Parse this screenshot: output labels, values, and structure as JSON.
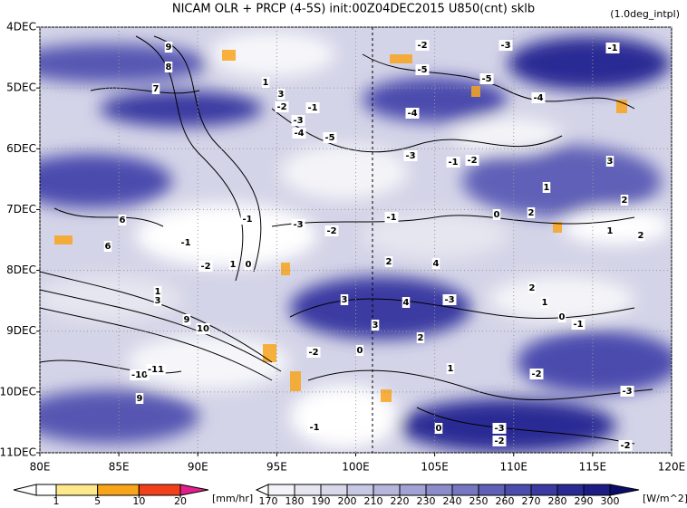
{
  "chart_data": {
    "type": "heatmap",
    "title": "NICAM  OLR + PRCP (4-5S) init:00Z04DEC2015 U850(cnt) sklb",
    "subtitle": "(1.0deg_intpl)",
    "xlim": [
      80,
      120
    ],
    "xticks": [
      {
        "value": 80,
        "label": "80E"
      },
      {
        "value": 85,
        "label": "85E"
      },
      {
        "value": 90,
        "label": "90E"
      },
      {
        "value": 95,
        "label": "95E"
      },
      {
        "value": 100,
        "label": "100E"
      },
      {
        "value": 105,
        "label": "105E"
      },
      {
        "value": 110,
        "label": "110E"
      },
      {
        "value": 115,
        "label": "115E"
      },
      {
        "value": 120,
        "label": "120E"
      }
    ],
    "ylim": [
      4,
      11
    ],
    "yticks": [
      {
        "value": 4,
        "label": "4DEC"
      },
      {
        "value": 5,
        "label": "5DEC"
      },
      {
        "value": 6,
        "label": "6DEC"
      },
      {
        "value": 7,
        "label": "7DEC"
      },
      {
        "value": 8,
        "label": "8DEC"
      },
      {
        "value": 9,
        "label": "9DEC"
      },
      {
        "value": 10,
        "label": "10DEC"
      },
      {
        "value": 11,
        "label": "11DEC"
      }
    ],
    "grid": true,
    "contour_labels": [
      "9",
      "8",
      "7",
      "1",
      "3",
      "-2",
      "-1",
      "-3",
      "-4",
      "-5",
      "-2",
      "-5",
      "-3",
      "-1",
      "-5",
      "-4",
      "-4",
      "-3",
      "-1",
      "-2",
      "3",
      "1",
      "2",
      "-1",
      "-3",
      "-1",
      "0",
      "2",
      "-2",
      "1",
      "2",
      "-1",
      "6",
      "6",
      "-2",
      "1",
      "0",
      "2",
      "4",
      "3",
      "4",
      "-3",
      "2",
      "1",
      "0",
      "-1",
      "3",
      "2",
      "0",
      "-2",
      "1",
      "-2",
      "-3",
      "-3",
      "-2",
      "-2",
      "0",
      "-1",
      "9",
      "10",
      "-10",
      "-11",
      "9",
      "3",
      "1"
    ],
    "colorbars": [
      {
        "unit": "[mm/hr]",
        "ticks": [
          1,
          5,
          10,
          20
        ],
        "colors": [
          "#ffffff",
          "#fde98b",
          "#f8a51c",
          "#f0411c",
          "#e0208c"
        ]
      },
      {
        "unit": "[W/m^2]",
        "ticks": [
          170,
          180,
          190,
          200,
          210,
          220,
          230,
          240,
          250,
          260,
          270,
          280,
          290,
          300
        ],
        "colors": [
          "#ffffff",
          "#f4f4f8",
          "#e6e6f0",
          "#d8d8ea",
          "#c8c8e4",
          "#b6b6dc",
          "#a2a2d4",
          "#8c8ccb",
          "#7676c2",
          "#6060b8",
          "#4c4cae",
          "#3a3aa2",
          "#2a2a94",
          "#1c1c84",
          "#0c0c6c"
        ]
      }
    ]
  }
}
